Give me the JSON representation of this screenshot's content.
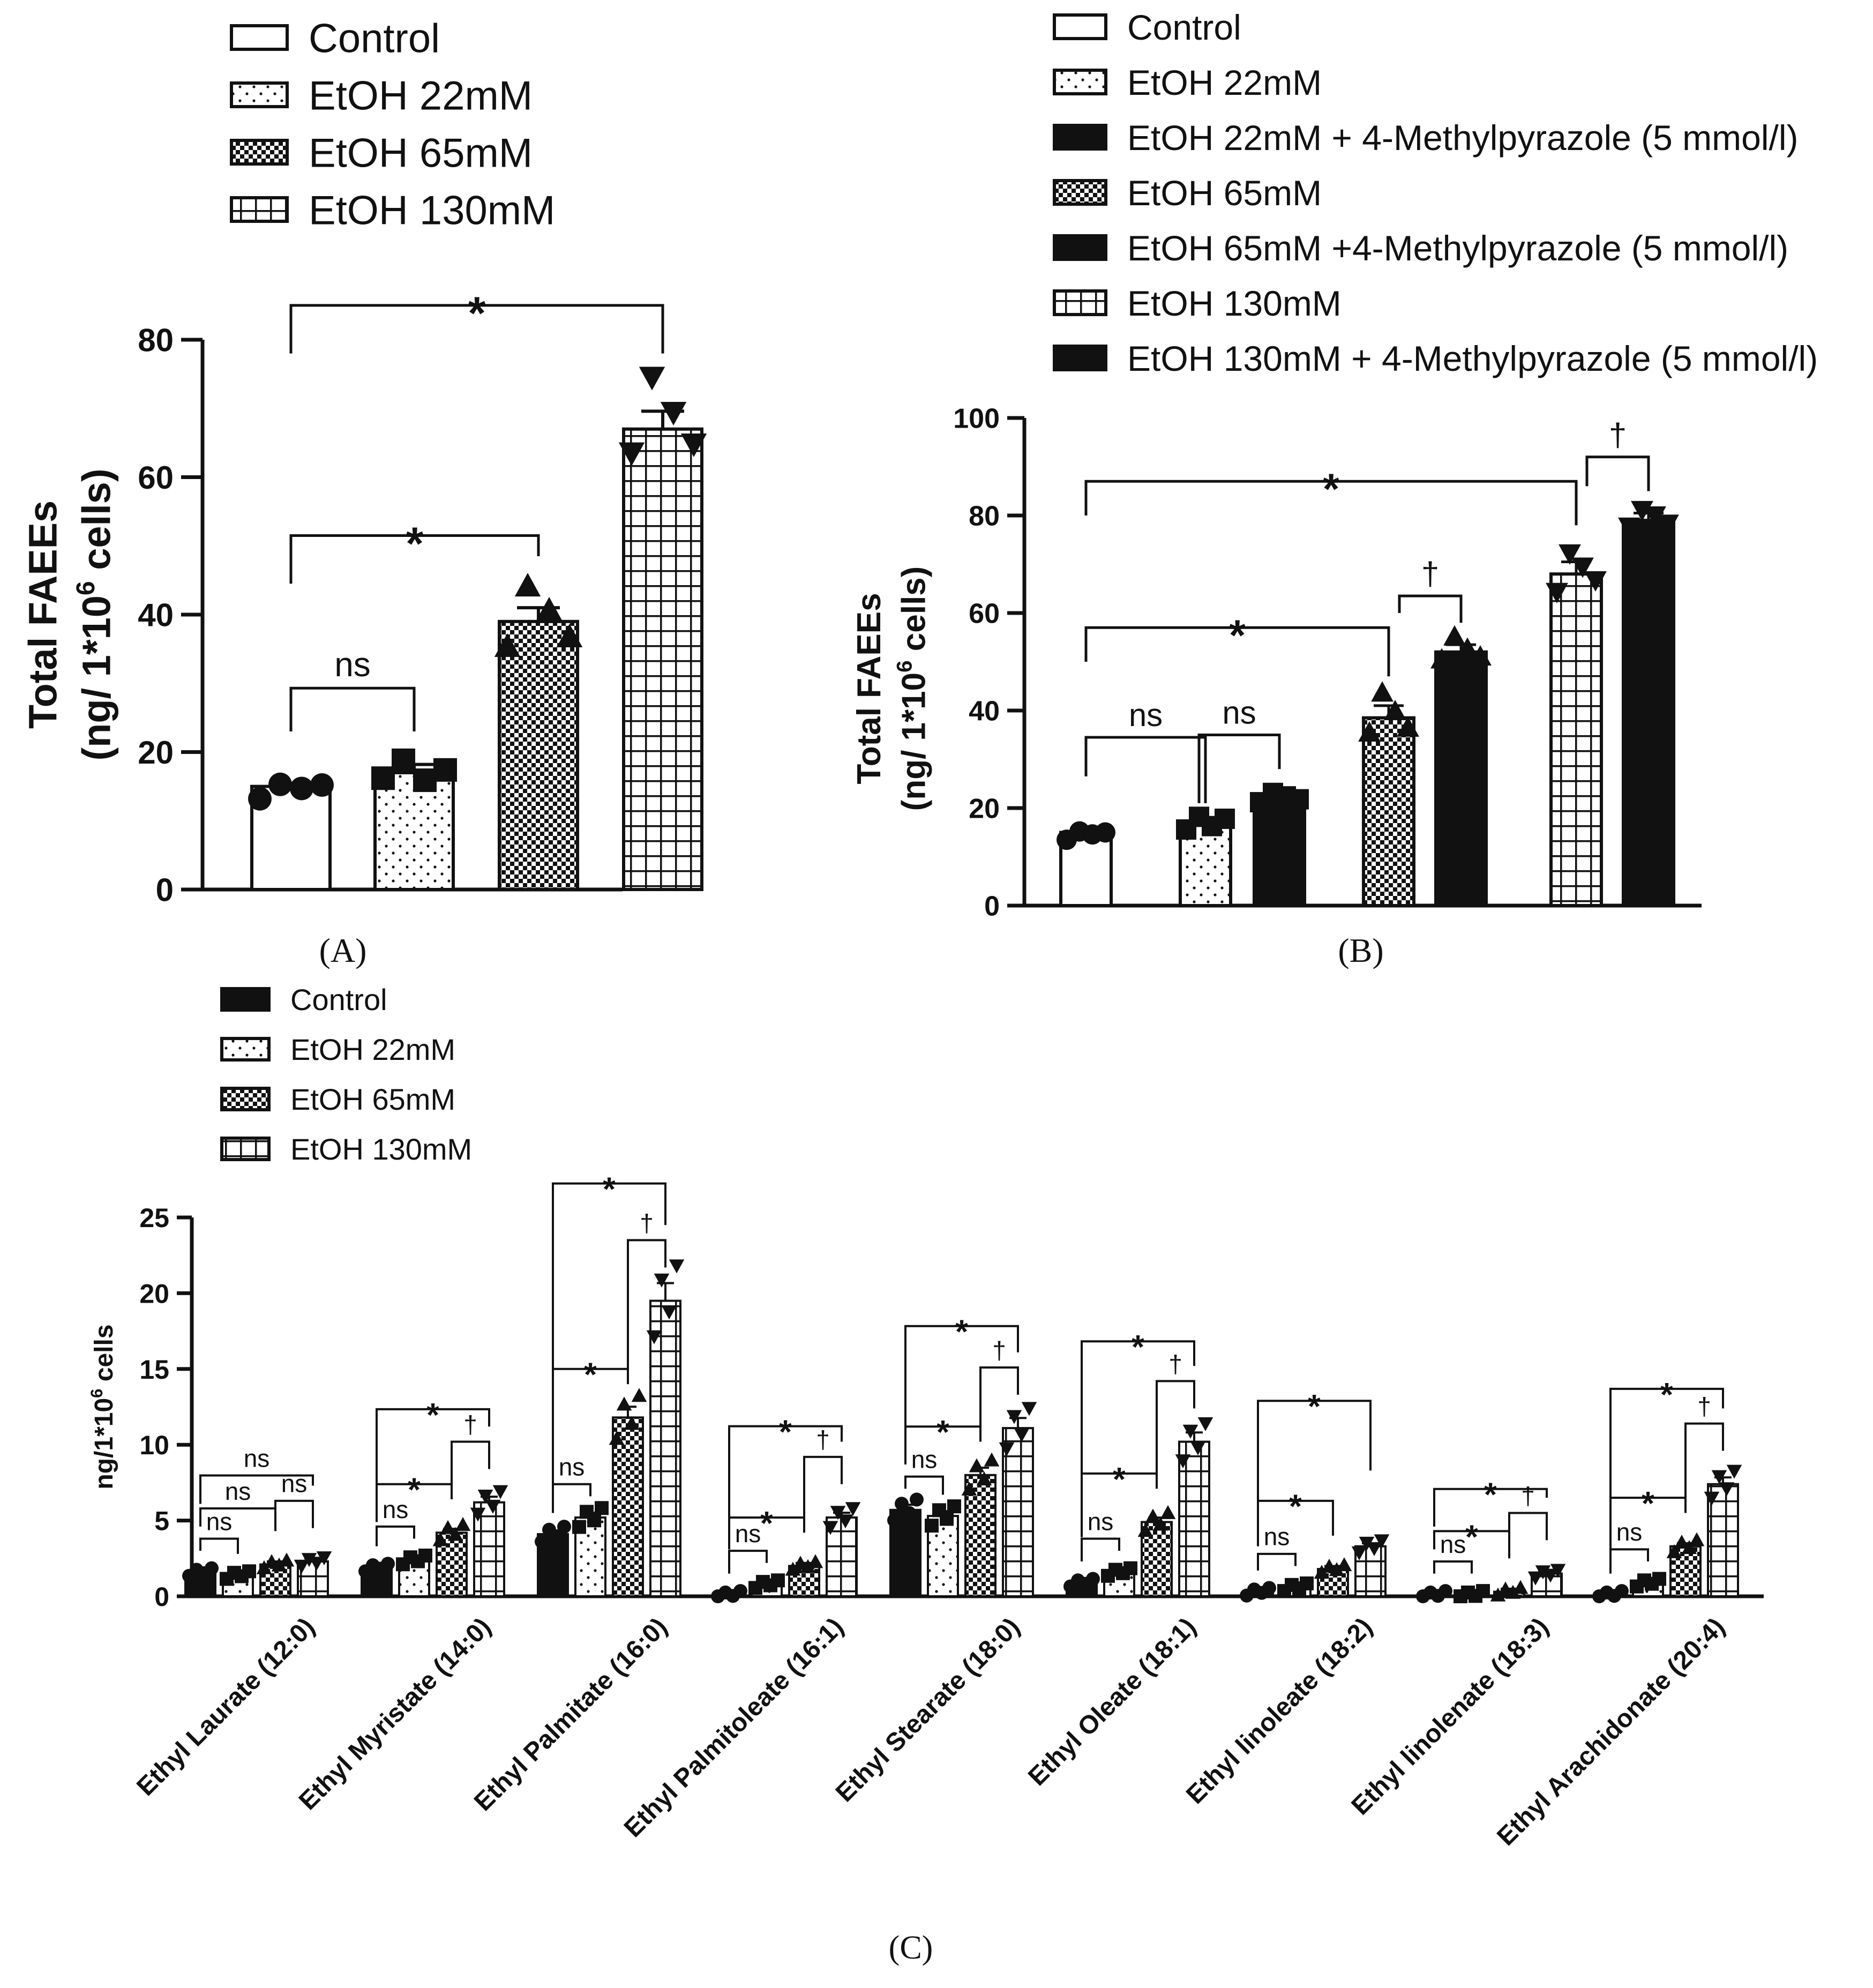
{
  "chart_data": [
    {
      "panel": "A",
      "type": "bar",
      "panel_label": "(A)",
      "ylabel": [
        "Total  FAEEs",
        "(ng/ 1*10",
        "6",
        " cells)"
      ],
      "ylim": [
        0,
        80
      ],
      "yticks": [
        "0",
        "20",
        "40",
        "60",
        "80"
      ],
      "legend": [
        "Control",
        "EtOH 22mM",
        "EtOH 65mM",
        "EtOH 130mM"
      ],
      "categories": [
        "Control",
        "EtOH 22mM",
        "EtOH 65mM",
        "EtOH 130mM"
      ],
      "values": [
        15,
        17,
        39,
        67
      ],
      "errors": [
        0.4,
        1.2,
        2.0,
        2.6
      ],
      "points": [
        [
          13.2,
          15.3,
          14.7,
          15.2
        ],
        [
          16.2,
          18.8,
          15.9,
          17.4
        ],
        [
          35.3,
          44.1,
          40.6,
          36.7
        ],
        [
          63.6,
          74.6,
          69.5,
          64.9
        ]
      ],
      "annotations": [
        "ns",
        "*",
        "*"
      ]
    },
    {
      "panel": "B",
      "type": "bar",
      "panel_label": "(B)",
      "ylabel": [
        "Total  FAEEs",
        "(ng/ 1*10",
        "6",
        " cells)"
      ],
      "ylim": [
        0,
        100
      ],
      "yticks": [
        "0",
        "20",
        "40",
        "60",
        "80",
        "100"
      ],
      "legend": [
        "Control",
        "EtOH 22mM",
        "EtOH 22mM + 4-Methylpyrazole (5 mmol/l)",
        "EtOH 65mM",
        "EtOH 65mM +4-Methylpyrazole (5 mmol/l)",
        "EtOH 130mM",
        "EtOH 130mM + 4-Methylpyrazole (5 mmol/l)"
      ],
      "categories": [
        "Control",
        "EtOH 22mM",
        "EtOH 22mM + 4-MP",
        "EtOH 65mM",
        "EtOH 65mM + 4-MP",
        "EtOH 130mM",
        "EtOH 130mM + 4-MP"
      ],
      "values": [
        15,
        17,
        22,
        38.5,
        52,
        68,
        79
      ],
      "errors": [
        0.4,
        1.0,
        1.0,
        2.5,
        1.5,
        2.5,
        1.5
      ],
      "points": [
        [
          13.5,
          15.2,
          14.6,
          15.0
        ],
        [
          15.6,
          18.2,
          16.3,
          17.8
        ],
        [
          21.2,
          23.1,
          22.4,
          21.8
        ],
        [
          35.4,
          43.6,
          39.8,
          36.4
        ],
        [
          50.4,
          55.1,
          52.6,
          51.0
        ],
        [
          64.4,
          72.3,
          69.6,
          66.8
        ],
        [
          77.8,
          81.2,
          80.1,
          78.4
        ]
      ],
      "annotations": [
        "ns",
        "ns",
        "*",
        "†",
        "*",
        "†"
      ]
    },
    {
      "panel": "C",
      "type": "bar",
      "panel_label": "(C)",
      "ylabel": [
        "ng/1*10",
        "6",
        " cells"
      ],
      "ylim": [
        0,
        25
      ],
      "yticks": [
        "0",
        "5",
        "10",
        "15",
        "20",
        "25"
      ],
      "legend": [
        "Control",
        "EtOH 22mM",
        "EtOH 65mM",
        "EtOH 130mM"
      ],
      "categories": [
        "Ethyl Laurate (12:0)",
        "Ethyl Myristate (14:0)",
        "Ethyl Palmitate (16:0)",
        "Ethyl Palmitoleate (16:1)",
        "Ethyl Stearate (18:0)",
        "Ethyl Oleate (18:1)",
        "Ethyl linoleate (18:2)",
        "Ethyl linolenate (18:3)",
        "Ethyl Arachidonate (20:4)"
      ],
      "series": [
        {
          "name": "Control",
          "values": [
            1.6,
            1.9,
            4.1,
            0.1,
            5.7,
            0.9,
            0.3,
            0.1,
            0.1
          ]
        },
        {
          "name": "EtOH 22mM",
          "values": [
            1.4,
            2.4,
            5.2,
            0.8,
            5.3,
            1.6,
            0.6,
            0.1,
            0.9
          ]
        },
        {
          "name": "EtOH 65mM",
          "values": [
            2.1,
            4.2,
            11.8,
            2.0,
            8.0,
            4.9,
            1.8,
            0.3,
            3.3
          ]
        },
        {
          "name": "EtOH 130mM",
          "values": [
            2.3,
            6.2,
            19.5,
            5.2,
            11.1,
            10.2,
            3.3,
            1.5,
            7.4
          ]
        }
      ],
      "annotations": [
        [
          "ns",
          "ns",
          "ns",
          "ns"
        ],
        [
          "ns",
          "*",
          "†",
          "*"
        ],
        [
          "ns",
          "*",
          "†",
          "*"
        ],
        [
          "ns",
          "*",
          "†",
          "*"
        ],
        [
          "ns",
          "*",
          "†",
          "*"
        ],
        [
          "ns",
          "*",
          "†",
          "*"
        ],
        [
          "ns",
          "*",
          "*"
        ],
        [
          "ns",
          "*",
          "†",
          "*"
        ],
        [
          "ns",
          "*",
          "†",
          "*"
        ]
      ]
    }
  ]
}
